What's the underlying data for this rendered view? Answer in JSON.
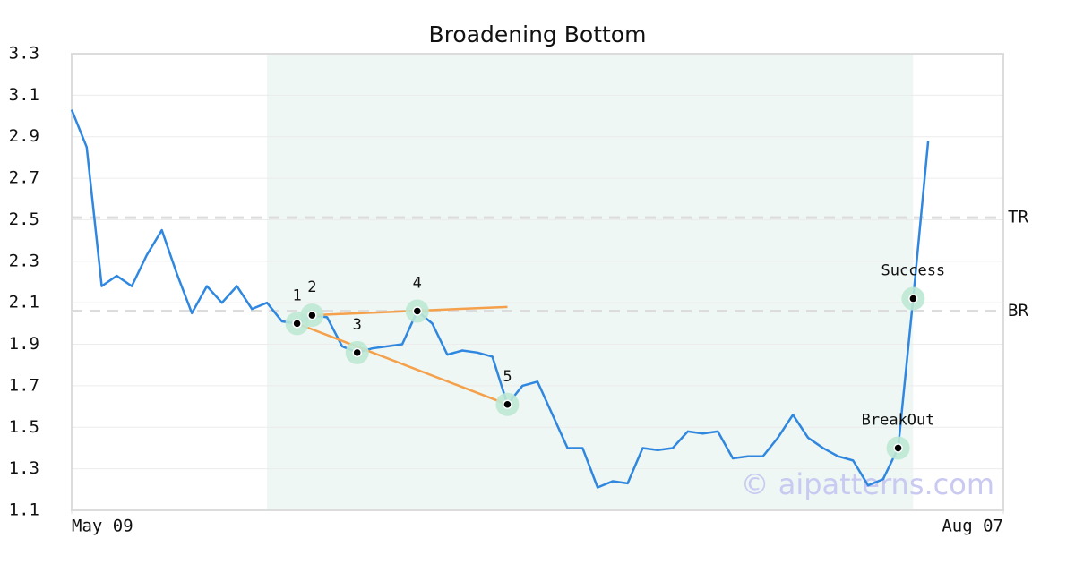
{
  "chart_data": {
    "type": "line",
    "title": "Broadening Bottom",
    "x": [
      0,
      1,
      2,
      3,
      4,
      5,
      6,
      7,
      8,
      9,
      10,
      11,
      12,
      13,
      14,
      15,
      16,
      17,
      18,
      19,
      20,
      21,
      22,
      23,
      24,
      25,
      26,
      27,
      28,
      29,
      30,
      31,
      32,
      33,
      34,
      35,
      36,
      37,
      38,
      39,
      40,
      41,
      42,
      43,
      44,
      45,
      46,
      47,
      48,
      49,
      50,
      51,
      52,
      53,
      54,
      55,
      56,
      57
    ],
    "series": [
      {
        "color": "#2f87e0",
        "values": [
          3.03,
          2.85,
          2.18,
          2.23,
          2.18,
          2.33,
          2.45,
          2.24,
          2.05,
          2.18,
          2.1,
          2.18,
          2.07,
          2.1,
          2.01,
          2.0,
          2.04,
          2.03,
          1.89,
          1.86,
          1.88,
          1.89,
          1.9,
          2.06,
          2.0,
          1.85,
          1.87,
          1.86,
          1.84,
          1.61,
          1.7,
          1.72,
          1.56,
          1.4,
          1.4,
          1.21,
          1.24,
          1.23,
          1.4,
          1.39,
          1.4,
          1.48,
          1.47,
          1.48,
          1.35,
          1.36,
          1.36,
          1.45,
          1.56,
          1.45,
          1.4,
          1.36,
          1.34,
          1.22,
          1.25,
          1.4,
          2.12,
          2.88
        ]
      }
    ],
    "xlim": [
      0,
      62
    ],
    "xticks": [
      {
        "value": 0,
        "label": "May 09"
      },
      {
        "value": 62,
        "label": "Aug 07"
      }
    ],
    "ylim": [
      1.1,
      3.3
    ],
    "yticks": [
      1.1,
      1.3,
      1.5,
      1.7,
      1.9,
      2.1,
      2.3,
      2.5,
      2.7,
      2.9,
      3.1,
      3.3
    ],
    "grid": true,
    "highlight": {
      "from": 13,
      "to": 56,
      "color": "#eef7f3"
    },
    "levels": [
      {
        "label": "TR",
        "value": 2.51
      },
      {
        "label": "BR",
        "value": 2.06
      }
    ],
    "points": [
      {
        "label": "1",
        "x": 15,
        "value": 2.0
      },
      {
        "label": "2",
        "x": 16,
        "value": 2.04
      },
      {
        "label": "3",
        "x": 19,
        "value": 1.86
      },
      {
        "label": "4",
        "x": 23,
        "value": 2.06
      },
      {
        "label": "5",
        "x": 29,
        "value": 1.61
      },
      {
        "label": "BreakOut",
        "x": 55,
        "value": 1.4
      },
      {
        "label": "Success",
        "x": 56,
        "value": 2.12
      }
    ],
    "trendlines": [
      {
        "color": "#f5a04a",
        "x": [
          16,
          29
        ],
        "values": [
          2.04,
          2.08
        ]
      },
      {
        "color": "#f5a04a",
        "x": [
          15,
          29
        ],
        "values": [
          2.0,
          1.61
        ]
      }
    ],
    "watermark": "© aipatterns.com"
  }
}
